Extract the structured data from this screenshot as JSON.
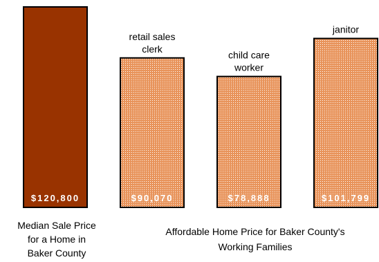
{
  "chart_data": {
    "type": "bar",
    "categories": [
      "Median Sale Price",
      "retail sales clerk",
      "child care worker",
      "janitor"
    ],
    "values": [
      120800,
      90070,
      78888,
      101799
    ],
    "value_labels": [
      "$120,800",
      "$90,070",
      "$78,888",
      "$101,799"
    ],
    "bar_labels": [
      [],
      [
        "retail sales",
        "clerk"
      ],
      [
        "child care",
        "worker"
      ],
      [
        "janitor"
      ]
    ],
    "ylim": [
      0,
      120800
    ],
    "grid": false,
    "colors": {
      "median_fill": "#993300",
      "afford_base": "#e8935a",
      "afford_dot": "#ffffff",
      "edge": "#000000"
    }
  },
  "captions": {
    "median": [
      "Median Sale Price",
      "for a Home in",
      "Baker County"
    ],
    "affordable": [
      "Affordable Home Price for Baker County's",
      "Working Families"
    ]
  }
}
